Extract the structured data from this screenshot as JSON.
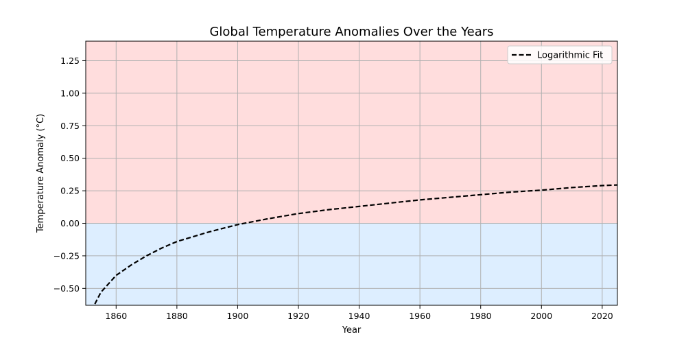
{
  "chart_data": {
    "type": "line",
    "title": "Global Temperature Anomalies Over the Years",
    "xlabel": "Year",
    "ylabel": "Temperature Anomaly (°C)",
    "xlim": [
      1850,
      2025
    ],
    "ylim": [
      -0.63,
      1.4
    ],
    "xticks": [
      1860,
      1880,
      1900,
      1920,
      1940,
      1960,
      1980,
      2000,
      2020
    ],
    "yticks": [
      -0.5,
      -0.25,
      0.0,
      0.25,
      0.5,
      0.75,
      1.0,
      1.25
    ],
    "ytick_labels": [
      "−0.50",
      "−0.25",
      "0.00",
      "0.25",
      "0.50",
      "0.75",
      "1.00",
      "1.25"
    ],
    "xtick_labels": [
      "1860",
      "1880",
      "1900",
      "1920",
      "1940",
      "1960",
      "1980",
      "2000",
      "2020"
    ],
    "grid": true,
    "legend_position": "top-right",
    "shaded_regions": [
      {
        "from": 0.0,
        "to": 1.4,
        "color": "#ffdddd"
      },
      {
        "from": -0.63,
        "to": 0.0,
        "color": "#ddeeff"
      }
    ],
    "series": [
      {
        "name": "Logarithmic Fit",
        "style": "dashed",
        "color": "#000000",
        "x": [
          1853,
          1855,
          1860,
          1865,
          1870,
          1875,
          1880,
          1890,
          1900,
          1910,
          1920,
          1930,
          1940,
          1950,
          1960,
          1970,
          1980,
          1990,
          2000,
          2010,
          2020,
          2025
        ],
        "y": [
          -0.62,
          -0.53,
          -0.4,
          -0.32,
          -0.25,
          -0.19,
          -0.14,
          -0.07,
          -0.01,
          0.035,
          0.075,
          0.105,
          0.13,
          0.155,
          0.18,
          0.2,
          0.22,
          0.24,
          0.255,
          0.275,
          0.29,
          0.295
        ]
      }
    ]
  }
}
